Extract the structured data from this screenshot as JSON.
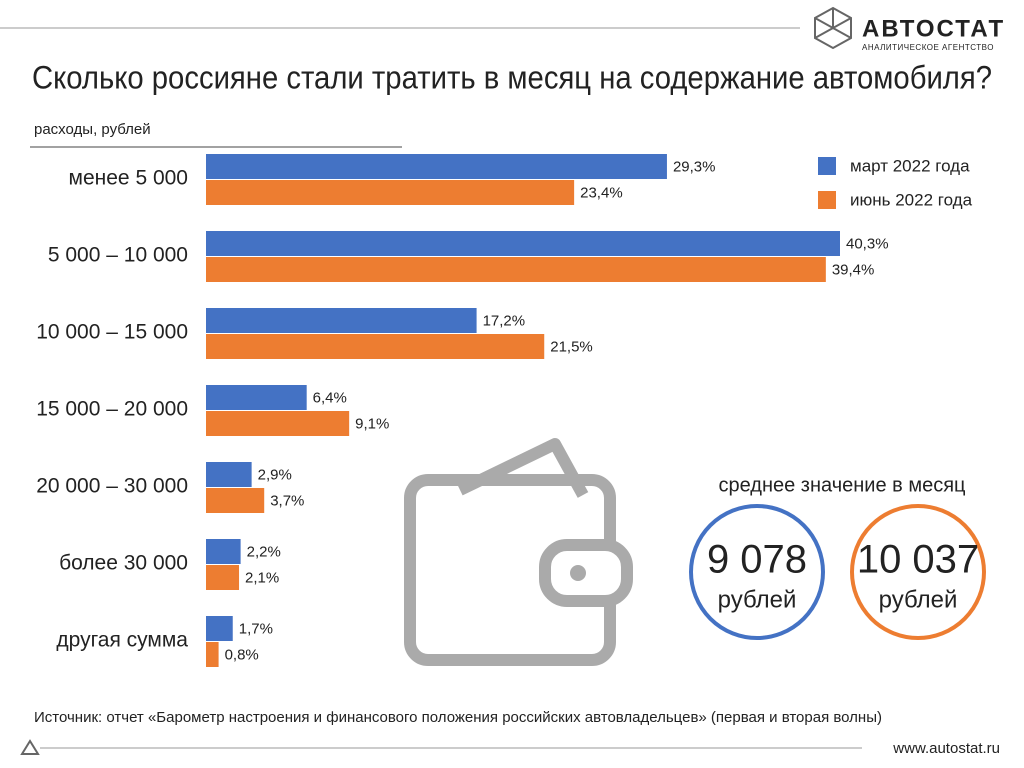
{
  "logo": {
    "name": "АВТОСТАТ",
    "tagline": "АНАЛИТИЧЕСКОЕ АГЕНТСТВО"
  },
  "chart_data": {
    "type": "bar",
    "orientation": "horizontal",
    "title": "Сколько россияне стали тратить в месяц на содержание автомобиля?",
    "subtitle": "расходы, рублей",
    "categories": [
      "менее 5 000",
      "5 000 – 10 000",
      "10 000 – 15 000",
      "15 000 – 20 000",
      "20 000 – 30 000",
      "более 30 000",
      "другая сумма"
    ],
    "series": [
      {
        "name": "март 2022 года",
        "color": "#4472c4",
        "values": [
          29.3,
          40.3,
          17.2,
          6.4,
          2.9,
          2.2,
          1.7
        ],
        "value_labels": [
          "29,3%",
          "40,3%",
          "17,2%",
          "6,4%",
          "2,9%",
          "2,2%",
          "1,7%"
        ]
      },
      {
        "name": "июнь 2022 года",
        "color": "#ed7d31",
        "values": [
          23.4,
          39.4,
          21.5,
          9.1,
          3.7,
          2.1,
          0.8
        ],
        "value_labels": [
          "23,4%",
          "39,4%",
          "21,5%",
          "9,1%",
          "3,7%",
          "2,1%",
          "0,8%"
        ]
      }
    ],
    "legend": "top-right",
    "averages": {
      "title": "среднее значение в месяц",
      "values": [
        9078,
        10037
      ],
      "value_labels": [
        "9 078",
        "10 037"
      ],
      "units": [
        "рублей",
        "рублей"
      ]
    }
  },
  "source": "Источник: отчет «Барометр настроения и финансового положения российских автовладельцев» (первая и вторая волны)",
  "website": "www.autostat.ru"
}
